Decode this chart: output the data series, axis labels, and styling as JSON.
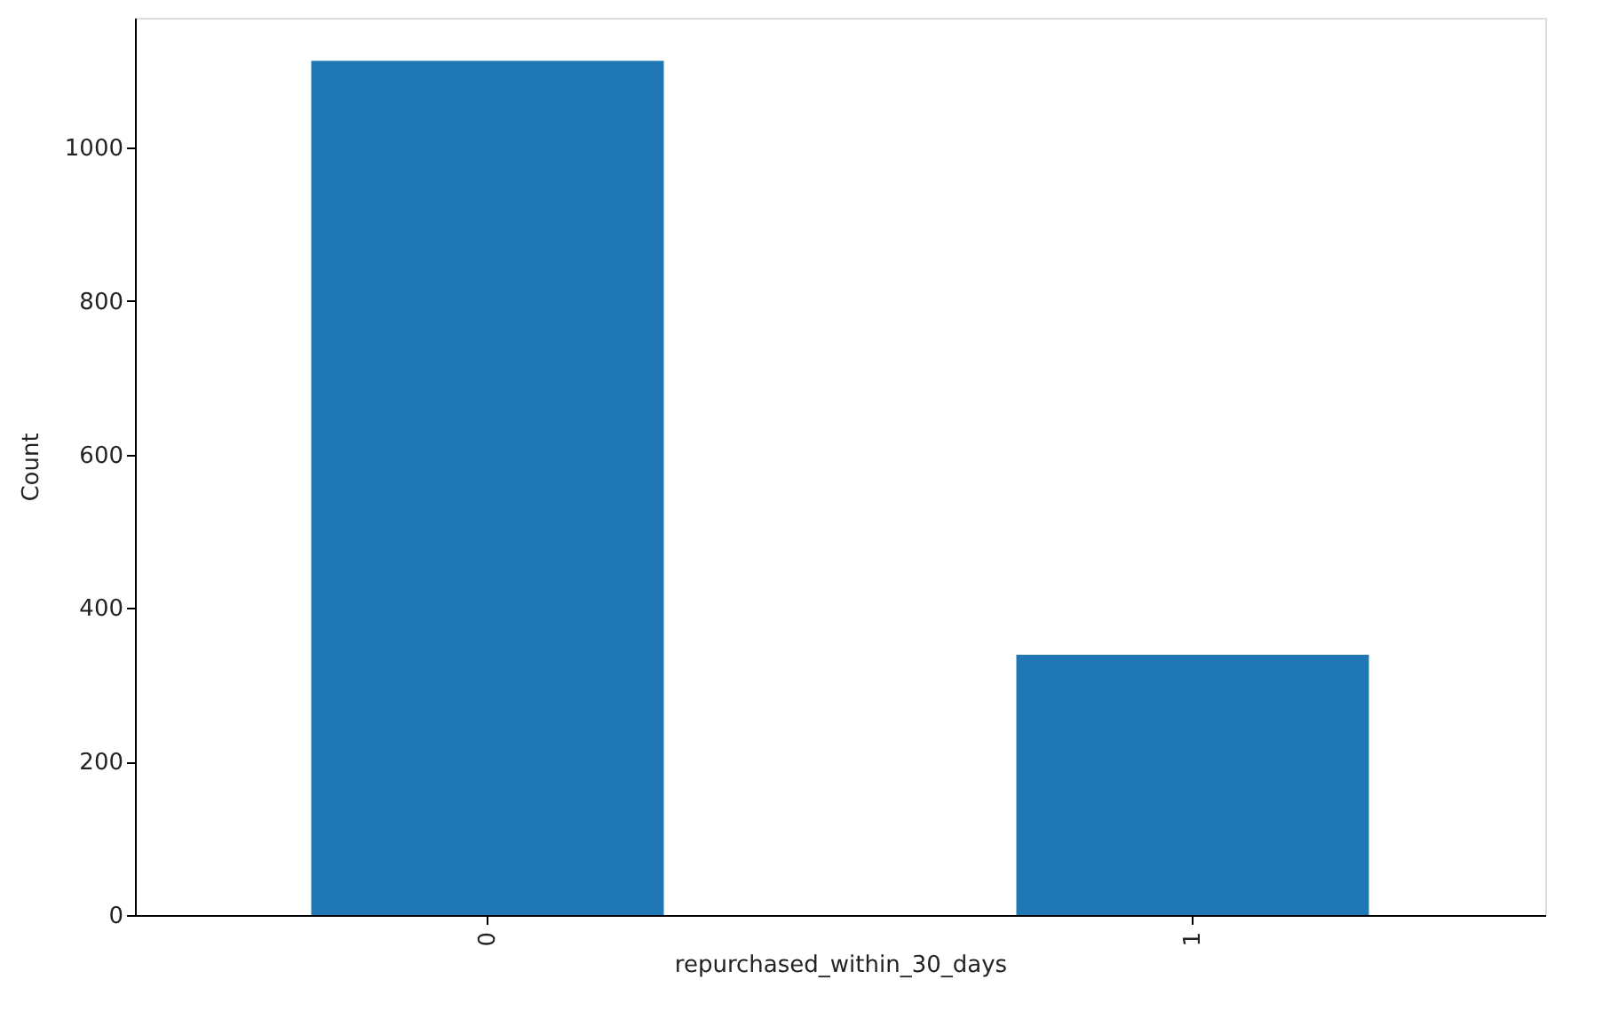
{
  "chart_data": {
    "type": "bar",
    "xlabel": "repurchased_within_30_days",
    "ylabel": "Count",
    "categories": [
      "0",
      "1"
    ],
    "values": [
      1113,
      339
    ],
    "color": "#1f77b4",
    "ylim": [
      0,
      1169
    ],
    "yticks": [
      0,
      200,
      400,
      600,
      800,
      1000
    ],
    "grid": false
  }
}
